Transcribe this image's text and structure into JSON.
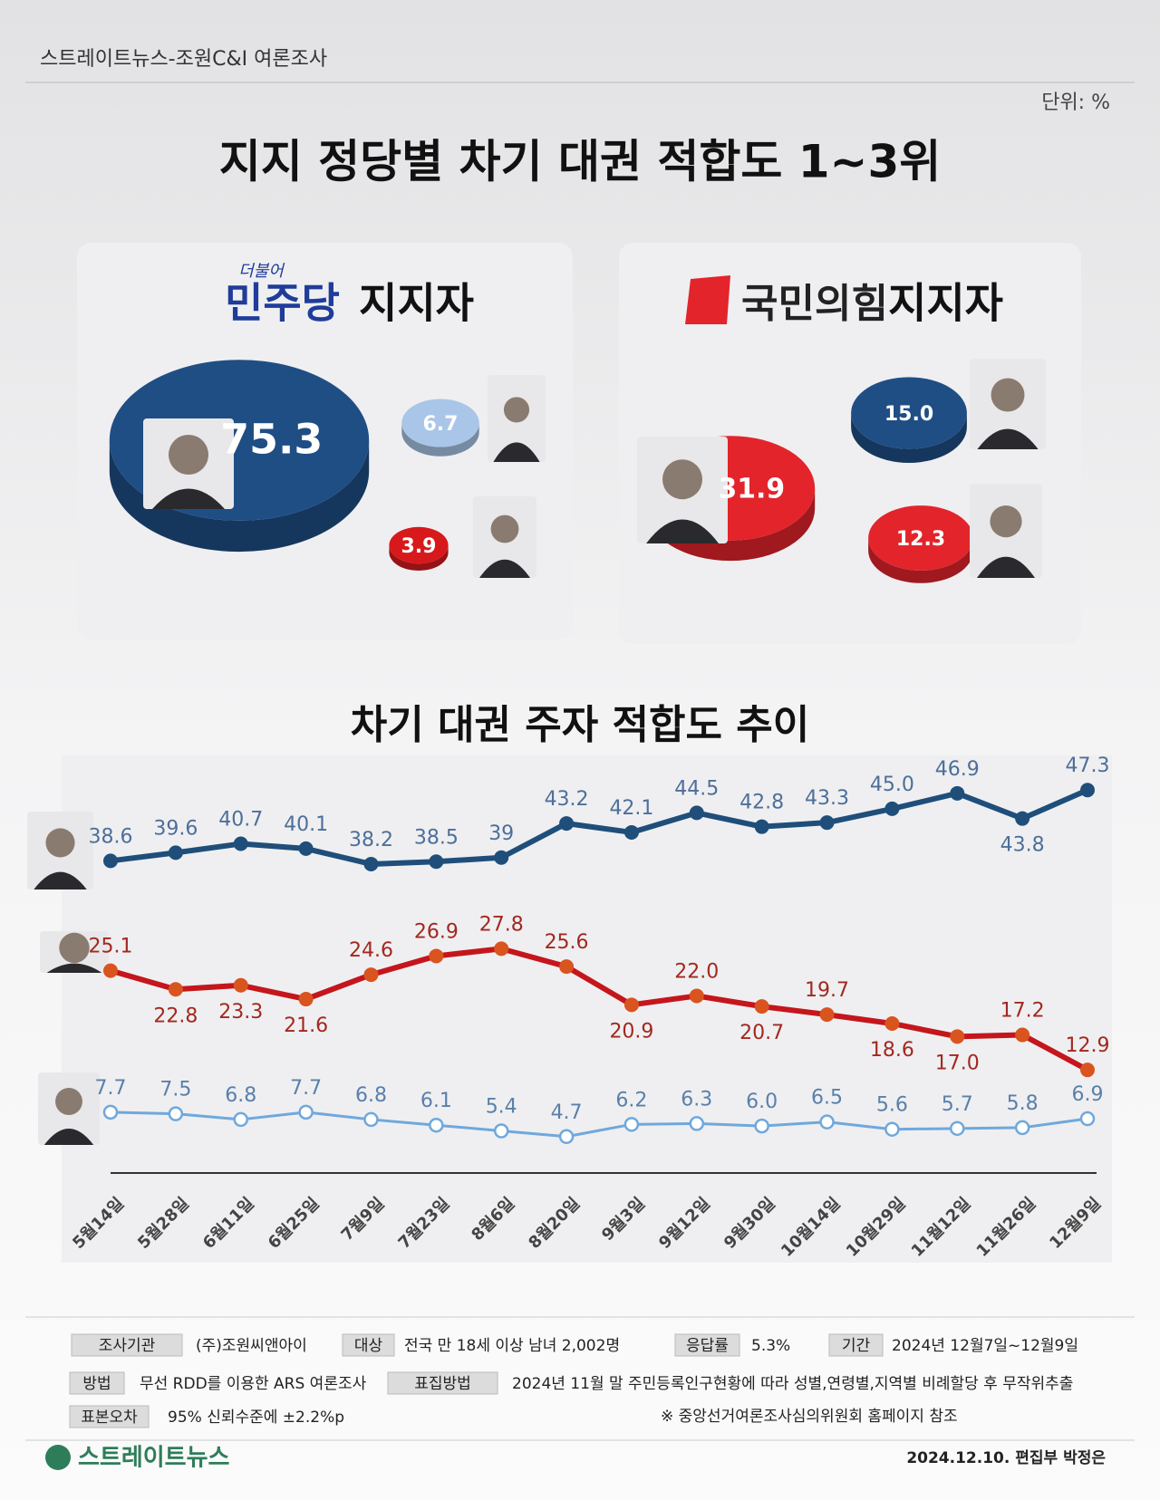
{
  "header": {
    "source": "스트레이트뉴스-조원C&I 여론조사",
    "unit": "단위: %"
  },
  "title": "지지 정당별 차기 대권  적합도 1~3위",
  "panels": [
    {
      "party_tag": "더불어",
      "party": "민주당",
      "label": "지지자",
      "values": [
        75.3,
        6.7,
        3.9
      ],
      "value_labels": [
        "75.3",
        "6.7",
        "3.9"
      ],
      "colors": [
        "#1f4e85",
        "#a9c6e8",
        "#d7191c"
      ]
    },
    {
      "party": "국민의힘",
      "label": "지지자",
      "values": [
        31.9,
        15,
        12.3
      ],
      "value_labels": [
        "31.9",
        "15.0",
        "12.3"
      ],
      "colors": [
        "#e3242b",
        "#1f4e85",
        "#e3242b"
      ]
    }
  ],
  "chart_data": {
    "type": "line",
    "title": "차기 대권 주자 적합도 추이",
    "categories": [
      "5월14일",
      "5월28일",
      "6월11일",
      "6월25일",
      "7월9일",
      "7월23일",
      "8월6일",
      "8월20일",
      "9월3일",
      "9월12일",
      "9월30일",
      "10월14일",
      "10월29일",
      "11월12일",
      "11월26일",
      "12월9일"
    ],
    "ylim": [
      0,
      50
    ],
    "series": [
      {
        "color": "#1f4e7a",
        "values": [
          38.6,
          39.6,
          40.7,
          40.1,
          38.2,
          38.5,
          39,
          43.2,
          42.1,
          44.5,
          42.8,
          43.3,
          45,
          46.9,
          43.8,
          47.3
        ],
        "value_labels": [
          "38.6",
          "39.6",
          "40.7",
          "40.1",
          "38.2",
          "38.5",
          "39",
          "43.2",
          "42.1",
          "44.5",
          "42.8",
          "43.3",
          "45.0",
          "46.9",
          "43.8",
          "47.3"
        ]
      },
      {
        "color": "#c4161c",
        "values": [
          25.1,
          22.8,
          23.3,
          21.6,
          24.6,
          26.9,
          27.8,
          25.6,
          20.9,
          22,
          20.7,
          19.7,
          18.6,
          17,
          17.2,
          12.9
        ],
        "value_labels": [
          "25.1",
          "22.8",
          "23.3",
          "21.6",
          "24.6",
          "26.9",
          "27.8",
          "25.6",
          "20.9",
          "22.0",
          "20.7",
          "19.7",
          "18.6",
          "17.0",
          "17.2",
          "12.9"
        ]
      },
      {
        "color": "#6fa8dc",
        "values": [
          7.7,
          7.5,
          6.8,
          7.7,
          6.8,
          6.1,
          5.4,
          4.7,
          6.2,
          6.3,
          6,
          6.5,
          5.6,
          5.7,
          5.8,
          6.9
        ],
        "value_labels": [
          "7.7",
          "7.5",
          "6.8",
          "7.7",
          "6.8",
          "6.1",
          "5.4",
          "4.7",
          "6.2",
          "6.3",
          "6.0",
          "6.5",
          "5.6",
          "5.7",
          "5.8",
          "6.9"
        ]
      }
    ]
  },
  "footer": {
    "fields": [
      {
        "label": "조사기관",
        "value": "(주)조원씨앤아이"
      },
      {
        "label": "대상",
        "value": "전국 만 18세 이상 남녀 2,002명"
      },
      {
        "label": "응답률",
        "value": "5.3%"
      },
      {
        "label": "기간",
        "value": "2024년 12월7일~12월9일"
      },
      {
        "label": "방법",
        "value": "무선 RDD를 이용한 ARS 여론조사"
      },
      {
        "label": "표집방법",
        "value": "2024년 11월 말 주민등록인구현황에 따라 성별,연령별,지역별 비례할당 후 무작위추출"
      },
      {
        "label": "표본오차",
        "value": "95% 신뢰수준에 ±2.2%p"
      }
    ],
    "note": "※ 중앙선거여론조사심의위원회 홈페이지 참조",
    "logo": "스트레이트뉴스",
    "byline": "2024.12.10. 편집부 박정은"
  }
}
